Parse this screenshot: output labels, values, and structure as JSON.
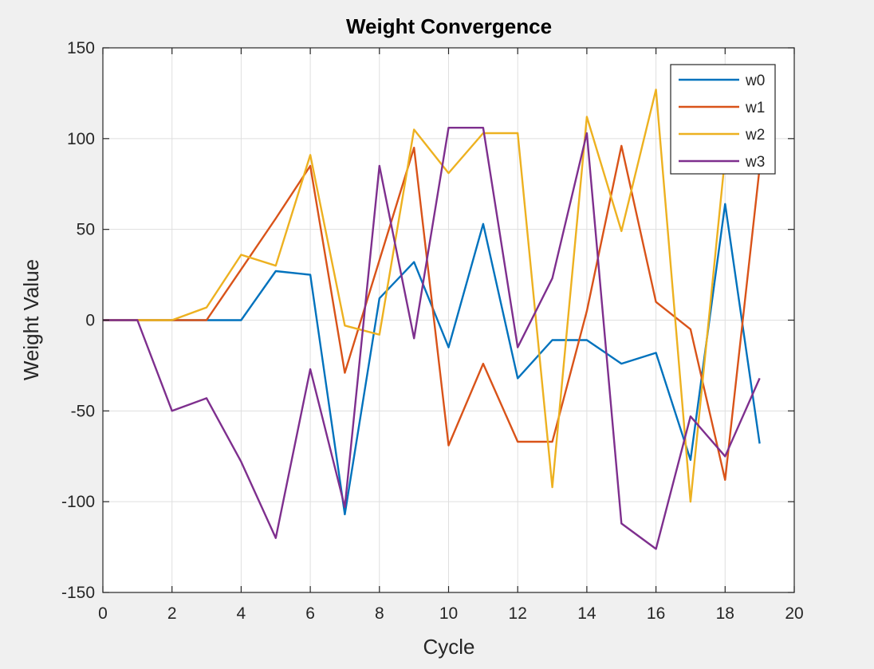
{
  "chart_data": {
    "type": "line",
    "title": "Weight Convergence",
    "xlabel": "Cycle",
    "ylabel": "Weight Value",
    "xlim": [
      0,
      20
    ],
    "ylim": [
      -150,
      150
    ],
    "xticks": [
      0,
      2,
      4,
      6,
      8,
      10,
      12,
      14,
      16,
      18,
      20
    ],
    "yticks": [
      -150,
      -100,
      -50,
      0,
      50,
      100,
      150
    ],
    "grid": true,
    "legend_position": "top-right",
    "x": [
      0,
      1,
      2,
      3,
      4,
      5,
      6,
      7,
      8,
      9,
      10,
      11,
      12,
      13,
      14,
      15,
      16,
      17,
      18,
      19
    ],
    "series": [
      {
        "name": "w0",
        "color": "#0072bd",
        "values": [
          0,
          0,
          0,
          0,
          0,
          27,
          25,
          -107,
          12,
          32,
          -15,
          53,
          -32,
          -11,
          -11,
          -24,
          -18,
          -77,
          64,
          -68
        ]
      },
      {
        "name": "w1",
        "color": "#d95319",
        "values": [
          0,
          0,
          0,
          0,
          28,
          56,
          85,
          -29,
          33,
          95,
          -69,
          -24,
          -67,
          -67,
          5,
          96,
          10,
          -5,
          -88,
          84
        ]
      },
      {
        "name": "w2",
        "color": "#edb120",
        "values": [
          0,
          0,
          0,
          7,
          36,
          30,
          91,
          -3,
          -8,
          105,
          81,
          103,
          103,
          -92,
          112,
          49,
          127,
          -100,
          90,
          null
        ]
      },
      {
        "name": "w3",
        "color": "#7e2f8e",
        "values": [
          0,
          0,
          -50,
          -43,
          -78,
          -120,
          -27,
          -103,
          85,
          -10,
          106,
          106,
          -15,
          23,
          103,
          -112,
          -126,
          -53,
          -75,
          -32
        ]
      }
    ]
  }
}
